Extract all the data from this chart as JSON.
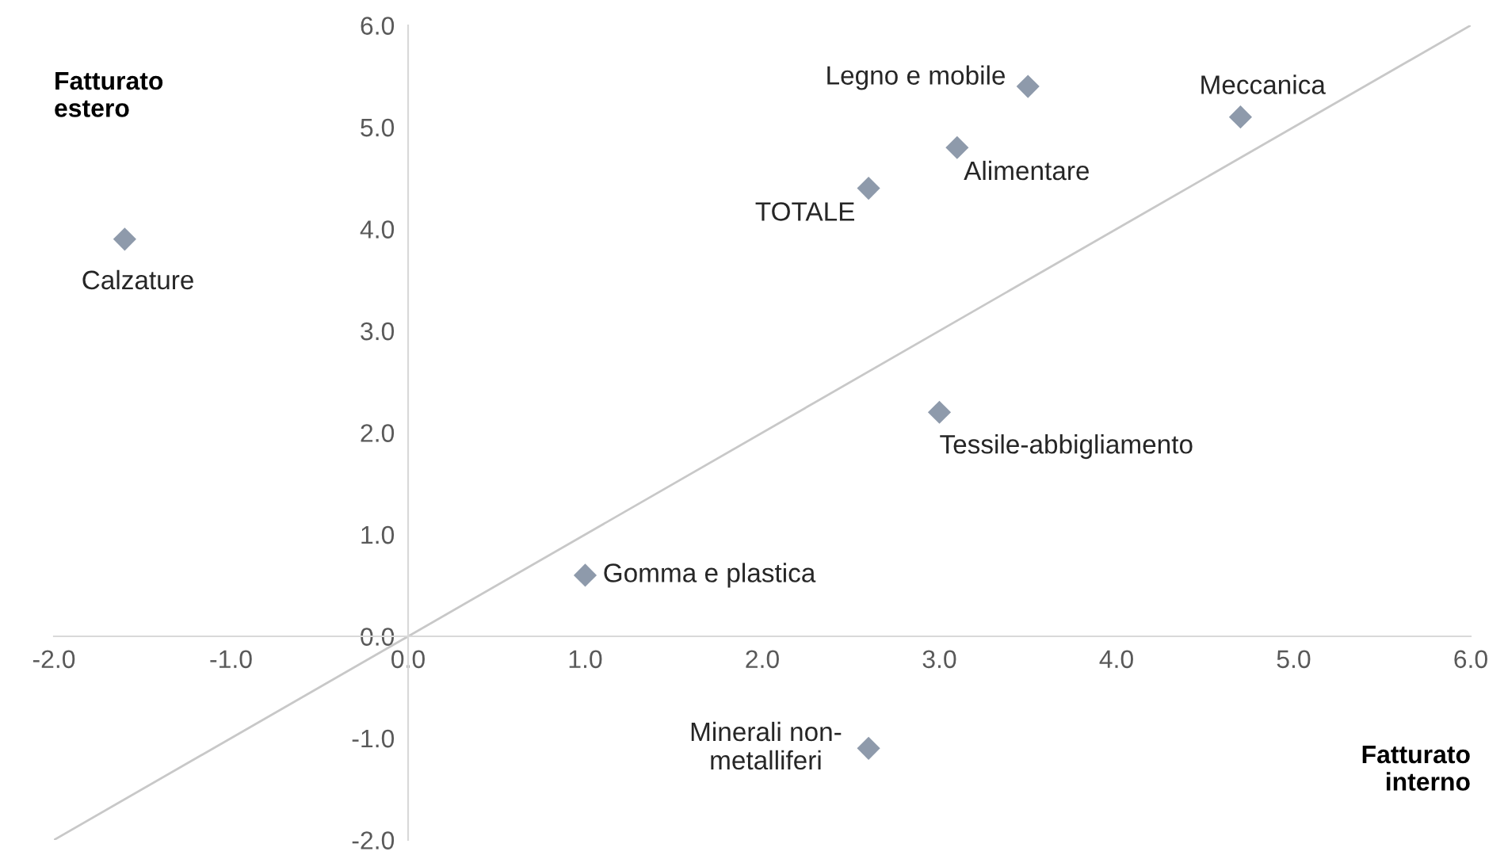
{
  "chart_data": {
    "type": "scatter",
    "xlabel": "Fatturato\ninterno",
    "ylabel": "Fatturato\nestero",
    "x": [
      -1.6,
      3.5,
      4.7,
      3.1,
      2.6,
      3.0,
      1.0,
      2.6
    ],
    "series": [
      {
        "type": "scatter",
        "color": "#8e9aab",
        "values": [
          3.9,
          5.4,
          5.1,
          4.8,
          4.4,
          2.2,
          0.6,
          -1.1
        ]
      },
      {
        "type": "line",
        "color": "#c8c8c8",
        "x": [
          -2.0,
          6.0
        ],
        "values": [
          -2.0,
          6.0
        ],
        "marker": "none"
      }
    ],
    "annotations": [
      {
        "text": "Calzature",
        "x": -1.6,
        "y": 3.9
      },
      {
        "text": "Legno e mobile",
        "x": 3.5,
        "y": 5.4
      },
      {
        "text": "Meccanica",
        "x": 4.7,
        "y": 5.1
      },
      {
        "text": "Alimentare",
        "x": 3.1,
        "y": 4.8
      },
      {
        "text": "TOTALE",
        "x": 2.6,
        "y": 4.4
      },
      {
        "text": "Tessile-abbigliamento",
        "x": 3.0,
        "y": 2.2
      },
      {
        "text": "Gomma e plastica",
        "x": 1.0,
        "y": 0.6
      },
      {
        "text": "Minerali non-\nmetalliferi",
        "x": 2.6,
        "y": -1.1
      }
    ],
    "xlim": [
      -2.0,
      6.0
    ],
    "ylim": [
      -2.0,
      6.0
    ],
    "xticks": [
      {
        "value": -2,
        "label": "-2.0"
      },
      {
        "value": -1,
        "label": "-1.0"
      },
      {
        "value": 0,
        "label": "0.0"
      },
      {
        "value": 1,
        "label": "1.0"
      },
      {
        "value": 2,
        "label": "2.0"
      },
      {
        "value": 3,
        "label": "3.0"
      },
      {
        "value": 4,
        "label": "4.0"
      },
      {
        "value": 5,
        "label": "5.0"
      },
      {
        "value": 6,
        "label": "6.0"
      }
    ],
    "yticks": [
      {
        "value": -2,
        "label": "-2.0"
      },
      {
        "value": -1,
        "label": "-1.0"
      },
      {
        "value": 0,
        "label": "0.0"
      },
      {
        "value": 1,
        "label": "1.0"
      },
      {
        "value": 2,
        "label": "2.0"
      },
      {
        "value": 3,
        "label": "3.0"
      },
      {
        "value": 4,
        "label": "4.0"
      },
      {
        "value": 5,
        "label": "5.0"
      },
      {
        "value": 6,
        "label": "6.0"
      }
    ],
    "marker": "diamond",
    "grid": false,
    "legend": false
  }
}
